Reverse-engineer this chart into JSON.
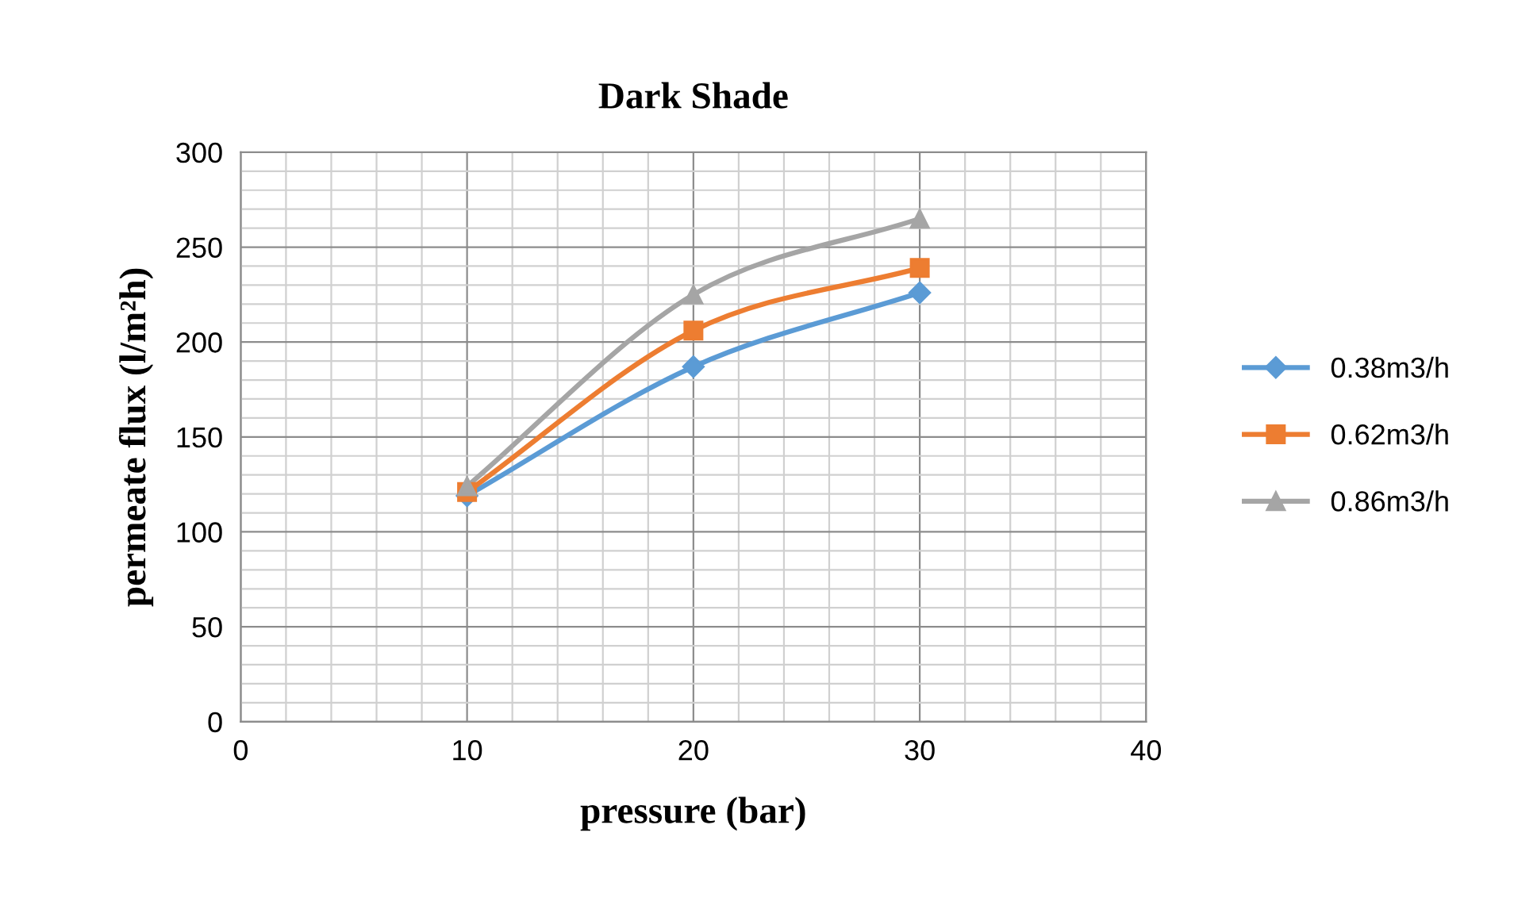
{
  "chart_data": {
    "type": "line",
    "title": "Dark Shade",
    "xlabel": "pressure (bar)",
    "ylabel": "permeate flux (l/m²h)",
    "x": [
      10,
      20,
      30
    ],
    "series": [
      {
        "name": "0.38m3/h",
        "color": "#5b9bd5",
        "marker": "diamond",
        "values": [
          119,
          187,
          226
        ]
      },
      {
        "name": "0.62m3/h",
        "color": "#ed7d31",
        "marker": "square",
        "values": [
          121,
          206,
          239
        ]
      },
      {
        "name": "0.86m3/h",
        "color": "#a5a5a5",
        "marker": "triangle",
        "values": [
          124,
          225,
          265
        ]
      }
    ],
    "xlim": [
      0,
      40
    ],
    "xticks": [
      0,
      10,
      20,
      30,
      40
    ],
    "ylim": [
      0,
      300
    ],
    "yticks": [
      0,
      50,
      100,
      150,
      200,
      250,
      300
    ],
    "grid": true,
    "legend": "right",
    "line_style": "solid"
  }
}
